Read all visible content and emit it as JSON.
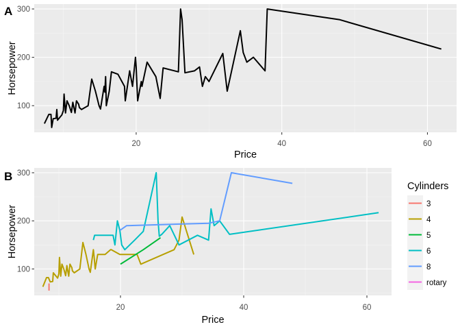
{
  "chart_data": [
    {
      "panel": "A",
      "type": "line",
      "title": "",
      "xlabel": "Price",
      "ylabel": "Horsepower",
      "xlim": [
        6,
        64
      ],
      "ylim": [
        45,
        310
      ],
      "x_ticks": [
        20,
        40,
        60
      ],
      "y_ticks": [
        100,
        200,
        300
      ],
      "grid": true,
      "color": "#000000",
      "series": [
        {
          "x": [
            7.4,
            8.0,
            8.3,
            8.4,
            8.6,
            9.0,
            9.1,
            9.2,
            9.8,
            10.0,
            10.1,
            10.3,
            10.5,
            10.8,
            11.1,
            11.3,
            11.6,
            11.8,
            12.1,
            12.2,
            12.5,
            13.4,
            13.9,
            14.4,
            14.9,
            15.1,
            15.6,
            15.7,
            15.8,
            15.9,
            16.3,
            16.6,
            17.5,
            18.4,
            18.5,
            19.1,
            19.5,
            19.9,
            20.0,
            20.2,
            20.7,
            20.8,
            21.5,
            22.7,
            23.3,
            23.7,
            25.8,
            26.1,
            26.3,
            26.7,
            28.0,
            28.7,
            29.1,
            29.5,
            30.0,
            31.9,
            32.5,
            34.3,
            34.7,
            35.2,
            36.1,
            37.7,
            38.0,
            47.9,
            61.9
          ],
          "y": [
            63,
            82,
            82,
            55,
            73,
            74,
            92,
            70,
            81,
            90,
            124,
            85,
            110,
            100,
            86,
            107,
            85,
            110,
            103,
            96,
            92,
            100,
            155,
            130,
            100,
            93,
            140,
            128,
            160,
            100,
            130,
            170,
            165,
            140,
            110,
            172,
            140,
            200,
            180,
            110,
            150,
            140,
            190,
            160,
            115,
            178,
            170,
            300,
            278,
            168,
            172,
            180,
            140,
            160,
            150,
            208,
            130,
            255,
            210,
            190,
            200,
            172,
            300,
            278,
            217
          ]
        }
      ]
    },
    {
      "panel": "B",
      "type": "line",
      "title": "",
      "xlabel": "Price",
      "ylabel": "Horsepower",
      "xlim": [
        6,
        64
      ],
      "ylim": [
        45,
        310
      ],
      "x_ticks": [
        20,
        40,
        60
      ],
      "y_ticks": [
        100,
        200,
        300
      ],
      "grid": true,
      "legend_title": "Cylinders",
      "legend_position": "right",
      "series": [
        {
          "name": "3",
          "color": "#F8766D",
          "x": [
            8.4,
            8.4
          ],
          "y": [
            55,
            70
          ]
        },
        {
          "name": "4",
          "color": "#B79F00",
          "x": [
            7.4,
            8.0,
            8.3,
            8.6,
            9.0,
            9.1,
            9.8,
            10.0,
            10.1,
            10.3,
            10.5,
            10.8,
            11.1,
            11.3,
            11.6,
            11.8,
            12.1,
            12.2,
            12.5,
            13.4,
            13.9,
            14.4,
            14.9,
            15.1,
            15.6,
            15.7,
            15.9,
            16.3,
            17.5,
            18.4,
            18.5,
            19.9,
            20.0,
            22.7,
            23.3,
            28.7,
            29.5,
            30.0,
            31.9
          ],
          "y": [
            63,
            82,
            82,
            73,
            74,
            92,
            81,
            90,
            124,
            85,
            110,
            100,
            86,
            107,
            85,
            110,
            103,
            96,
            92,
            100,
            155,
            130,
            100,
            93,
            140,
            128,
            100,
            130,
            130,
            140,
            140,
            130,
            130,
            130,
            110,
            140,
            160,
            208,
            130
          ]
        },
        {
          "name": "5",
          "color": "#00BA38",
          "x": [
            20.0,
            23.7,
            26.5
          ],
          "y": [
            110,
            140,
            165
          ]
        },
        {
          "name": "6",
          "color": "#00BFC4",
          "x": [
            15.6,
            15.8,
            16.6,
            18.8,
            19.1,
            19.5,
            19.9,
            20.2,
            20.7,
            21.5,
            22.3,
            23.7,
            25.8,
            26.1,
            26.3,
            26.7,
            28.0,
            29.5,
            32.5,
            34.3,
            34.7,
            35.2,
            36.1,
            37.7,
            61.9
          ],
          "y": [
            160,
            170,
            170,
            170,
            150,
            200,
            180,
            150,
            140,
            150,
            160,
            178,
            300,
            200,
            168,
            172,
            190,
            150,
            170,
            160,
            225,
            190,
            200,
            172,
            217
          ]
        },
        {
          "name": "8",
          "color": "#619CFF",
          "x": [
            19.9,
            21.0,
            34.3,
            36.1,
            38.0,
            47.9
          ],
          "y": [
            180,
            190,
            195,
            200,
            300,
            278
          ]
        },
        {
          "name": "rotary",
          "color": "#F564E3",
          "x": [],
          "y": []
        }
      ]
    }
  ]
}
